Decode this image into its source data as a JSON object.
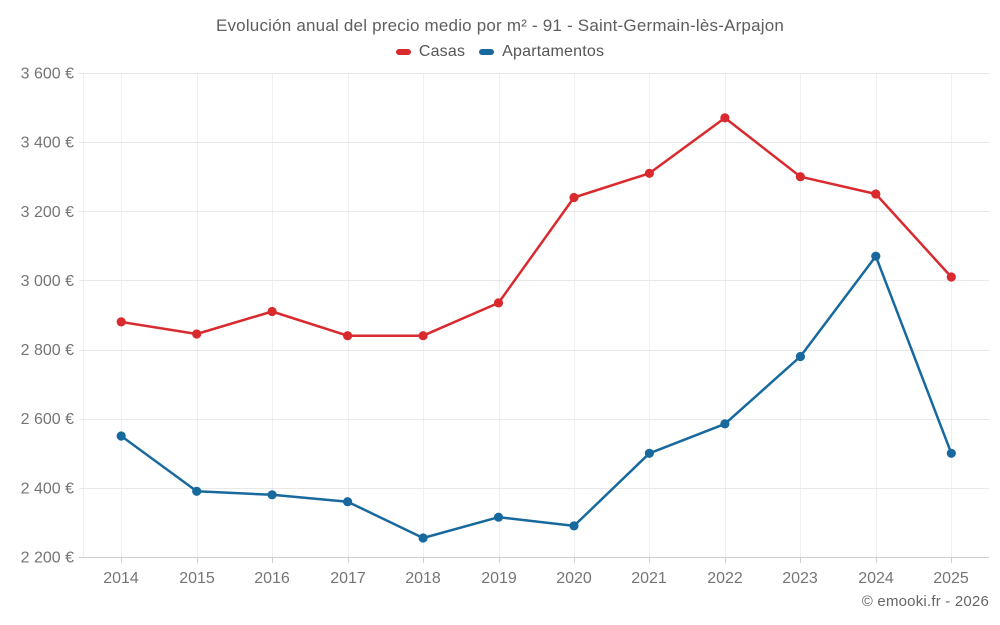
{
  "footer": "© emooki.fr - 2026",
  "chart_data": {
    "type": "line",
    "title": "Evolución anual del precio medio por m² - 91 - Saint-Germain-lès-Arpajon",
    "categories": [
      "2014",
      "2015",
      "2016",
      "2017",
      "2018",
      "2019",
      "2020",
      "2021",
      "2022",
      "2023",
      "2024",
      "2025"
    ],
    "series": [
      {
        "id": "casas",
        "name": "Casas",
        "color": "#d92a2e",
        "values": [
          2880,
          2845,
          2910,
          2840,
          2840,
          2935,
          3240,
          3310,
          3470,
          3300,
          3250,
          3010
        ]
      },
      {
        "id": "apartamentos",
        "name": "Apartamentos",
        "color": "#18699e",
        "values": [
          2550,
          2390,
          2380,
          2360,
          2255,
          2315,
          2290,
          2500,
          2585,
          2780,
          3070,
          2500
        ]
      }
    ],
    "ylim": [
      2200,
      3600
    ],
    "ytick_values": [
      2200,
      2400,
      2600,
      2800,
      3000,
      3200,
      3400,
      3600
    ],
    "ytick_labels": [
      "2 200 €",
      "2 400 €",
      "2 600 €",
      "2 800 €",
      "3 000 €",
      "3 200 €",
      "3 400 €",
      "3 600 €"
    ],
    "unit": "€",
    "grid": true,
    "legend_position": "top"
  },
  "style": {
    "hgrid_color": "#e8e8e8",
    "vgrid_color": "#efefef",
    "axis_color": "#cfcfcf",
    "tick_label_color": "#757575",
    "title_color": "#5e5e5e",
    "footer_color": "#666666"
  }
}
